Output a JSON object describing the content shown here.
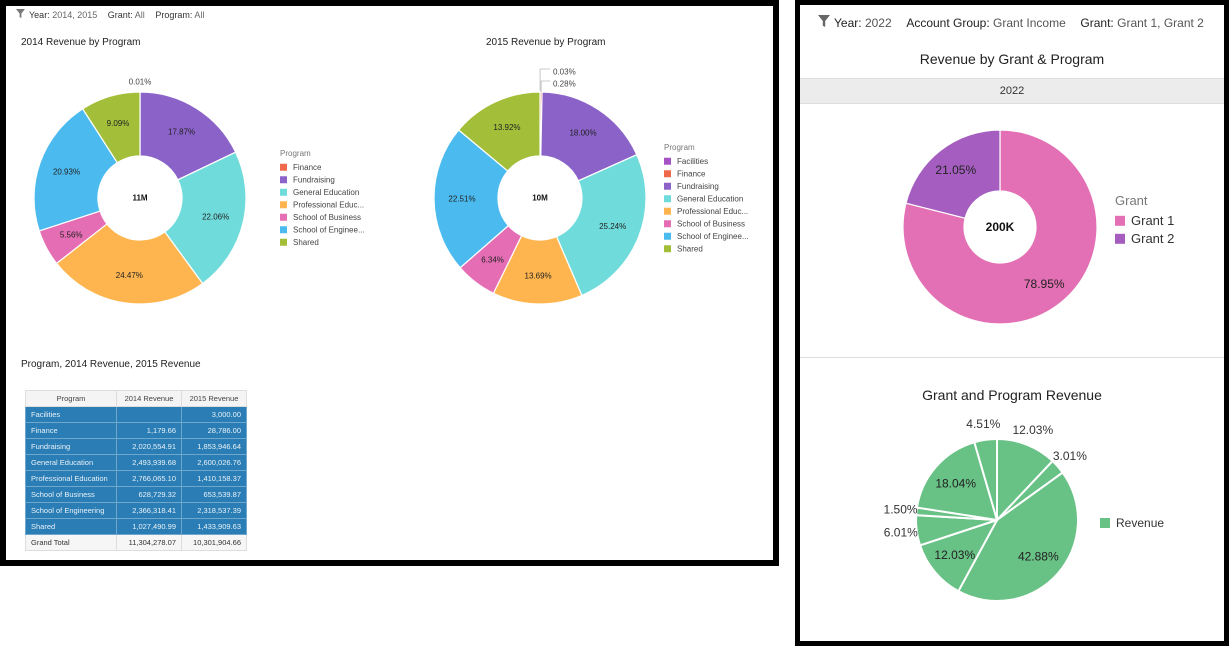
{
  "left": {
    "filters": [
      {
        "label": "Year:",
        "value": "2014, 2015"
      },
      {
        "label": "Grant:",
        "value": "All"
      },
      {
        "label": "Program:",
        "value": "All"
      }
    ],
    "table_title": "Program, 2014 Revenue, 2015 Revenue",
    "table": {
      "columns": [
        "Program",
        "2014 Revenue",
        "2015 Revenue"
      ],
      "rows": [
        [
          "Facilities",
          "",
          "3,000.00"
        ],
        [
          "Finance",
          "1,179.66",
          "28,786.00"
        ],
        [
          "Fundraising",
          "2,020,554.91",
          "1,853,946.64"
        ],
        [
          "General Education",
          "2,493,939.68",
          "2,600,026.76"
        ],
        [
          "Professional Education",
          "2,766,065.10",
          "1,410,158.37"
        ],
        [
          "School of Business",
          "628,729.32",
          "653,539.87"
        ],
        [
          "School of Engineering",
          "2,366,318.41",
          "2,318,537.39"
        ],
        [
          "Shared",
          "1,027,490.99",
          "1,433,909.63"
        ]
      ],
      "total": [
        "Grand Total",
        "11,304,278.07",
        "10,301,904.66"
      ]
    }
  },
  "right": {
    "filters": [
      {
        "label": "Year:",
        "value": "2022"
      },
      {
        "label": "Account Group:",
        "value": "Grant Income"
      },
      {
        "label": "Grant:",
        "value": "Grant 1, Grant 2"
      }
    ],
    "year_header": "2022"
  },
  "colors": {
    "Facilities": "#a452c4",
    "Finance": "#ef6a4c",
    "Fundraising": "#8a62c8",
    "General Education": "#6fdbdb",
    "Professional Education": "#ffb54f",
    "School of Business": "#e46db4",
    "School of Engineering": "#4bbaef",
    "Shared": "#a3bf3a",
    "Grant 1": "#e36fb4",
    "Grant 2": "#a55ec0",
    "Revenue": "#68c185"
  },
  "chart_data": [
    {
      "type": "pie",
      "title": "2014 Revenue by Program",
      "center_label": "11M",
      "legend_title": "Program",
      "legend_placement": "right",
      "legend": [
        "Finance",
        "Fundraising",
        "General Education",
        "Professional Educ...",
        "School of Business",
        "School of Enginee...",
        "Shared"
      ],
      "categories": [
        "Finance",
        "Fundraising",
        "General Education",
        "Professional Education",
        "School of Business",
        "School of Engineering",
        "Shared"
      ],
      "values": [
        0.01,
        17.87,
        22.06,
        24.47,
        5.56,
        20.93,
        9.09
      ],
      "labels": [
        "0.01%",
        "17.87%",
        "22.06%",
        "24.47%",
        "5.56%",
        "20.93%",
        "9.09%"
      ]
    },
    {
      "type": "pie",
      "title": "2015 Revenue by Program",
      "center_label": "10M",
      "legend_title": "Program",
      "legend_placement": "right",
      "legend": [
        "Facilities",
        "Finance",
        "Fundraising",
        "General Education",
        "Professional Educ...",
        "School of Business",
        "School of Enginee...",
        "Shared"
      ],
      "categories": [
        "Facilities",
        "Finance",
        "Fundraising",
        "General Education",
        "Professional Education",
        "School of Business",
        "School of Engineering",
        "Shared"
      ],
      "values": [
        0.03,
        0.28,
        18.0,
        25.24,
        13.69,
        6.34,
        22.51,
        13.92
      ],
      "labels": [
        "0.03%",
        "0.28%",
        "18.00%",
        "25.24%",
        "13.69%",
        "6.34%",
        "22.51%",
        "13.92%"
      ]
    },
    {
      "type": "pie",
      "title": "Revenue by Grant & Program",
      "center_label": "200K",
      "legend_title": "Grant",
      "legend_placement": "right",
      "legend": [
        "Grant 1",
        "Grant 2"
      ],
      "categories": [
        "Grant 1",
        "Grant 2"
      ],
      "values": [
        78.95,
        21.05
      ],
      "labels": [
        "78.95%",
        "21.05%"
      ]
    },
    {
      "type": "pie",
      "title": "Grant and Program Revenue",
      "legend_placement": "right",
      "legend": [
        "Revenue"
      ],
      "values": [
        12.03,
        3.01,
        42.88,
        12.03,
        6.01,
        1.5,
        18.04,
        4.51
      ],
      "labels": [
        "12.03%",
        "3.01%",
        "42.88%",
        "12.03%",
        "6.01%",
        "1.50%",
        "18.04%",
        "4.51%"
      ]
    }
  ]
}
